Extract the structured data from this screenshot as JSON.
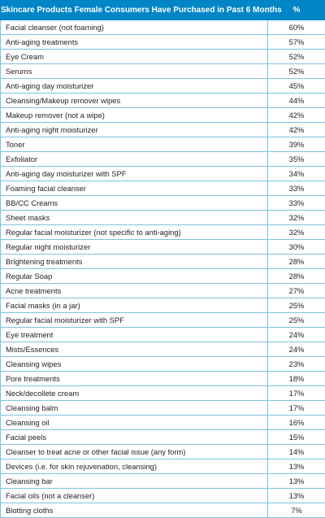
{
  "chart_data": {
    "type": "table",
    "columns": [
      "Skincare Products Female Consumers Have Purchased in Past 6 Months",
      "%"
    ],
    "rows": [
      [
        "Facial cleanser (not foaming)",
        "60%"
      ],
      [
        "Anti-aging treatments",
        "57%"
      ],
      [
        "Eye Cream",
        "52%"
      ],
      [
        "Serums",
        "52%"
      ],
      [
        "Anti-aging day moisturizer",
        "45%"
      ],
      [
        "Cleansing/Makeup remover wipes",
        "44%"
      ],
      [
        "Makeup remover (not a wipe)",
        "42%"
      ],
      [
        "Anti-aging night moisturizer",
        "42%"
      ],
      [
        "Toner",
        "39%"
      ],
      [
        "Exfoliator",
        "35%"
      ],
      [
        "Anti-aging day moisturizer with SPF",
        "34%"
      ],
      [
        "Foaming facial cleanser",
        "33%"
      ],
      [
        "BB/CC Creams",
        "33%"
      ],
      [
        "Sheet masks",
        "32%"
      ],
      [
        "Regular facial moisturizer (not specific to anti-aging)",
        "32%"
      ],
      [
        "Regular night moisturizer",
        "30%"
      ],
      [
        "Brightening treatments",
        "28%"
      ],
      [
        "Regular Soap",
        "28%"
      ],
      [
        "Acne treatments",
        "27%"
      ],
      [
        "Facial masks (in a jar)",
        "25%"
      ],
      [
        "Regular facial moisturizer with SPF",
        "25%"
      ],
      [
        "Eye treatment",
        "24%"
      ],
      [
        "Mists/Essences",
        "24%"
      ],
      [
        "Cleansing wipes",
        "23%"
      ],
      [
        "Pore treatments",
        "18%"
      ],
      [
        "Neck/decollete cream",
        "17%"
      ],
      [
        "Cleansing balm",
        "17%"
      ],
      [
        "Cleansing oil",
        "16%"
      ],
      [
        "Facial peels",
        "15%"
      ],
      [
        "Cleanser to treat acne or other facial issue (any form)",
        "14%"
      ],
      [
        "Devices (i.e. for skin rejuvenation, cleansing)",
        "13%"
      ],
      [
        "Cleansing bar",
        "13%"
      ],
      [
        "Facial oils (not a cleanser)",
        "13%"
      ],
      [
        "Blotting cloths",
        "7%"
      ]
    ]
  },
  "colors": {
    "header_bg": "#0085c7",
    "header_text": "#ffffff",
    "grid_line": "#7fc2e4",
    "body_text": "#231f20"
  }
}
